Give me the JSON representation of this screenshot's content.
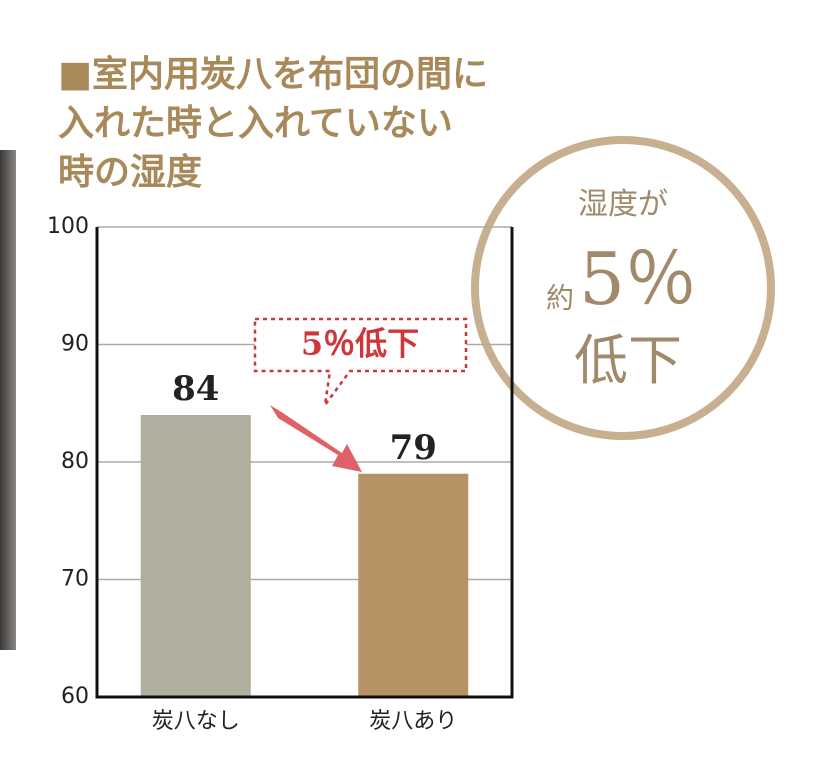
{
  "chart_data": {
    "type": "bar",
    "title": [
      "■室内用炭八を布団の間に",
      "入れた時と入れていない",
      "時の湿度"
    ],
    "categories": [
      "炭八なし",
      "炭八あり"
    ],
    "values": [
      84,
      79
    ],
    "colors": [
      "#b0ae9f",
      "#b59365"
    ],
    "ylim": [
      60,
      100
    ],
    "yticks": [
      60,
      70,
      80,
      90,
      100
    ],
    "grid": true,
    "callout": "5％低下",
    "badge": {
      "top": "湿度が",
      "prefix": "約",
      "big": "5％",
      "bottom": "低下"
    }
  }
}
